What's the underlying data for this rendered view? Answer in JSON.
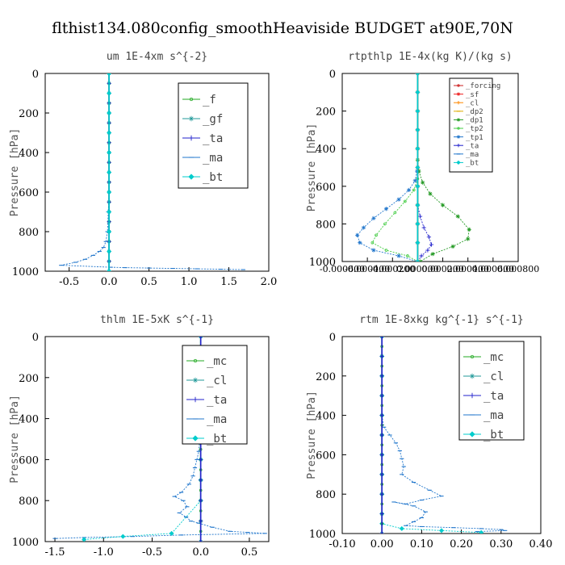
{
  "title": "flthist134.080config_smoothHeaviside  BUDGET at90E,70N",
  "chart_data": [
    {
      "type": "line",
      "title": "um  1E-4xm s^{-2}",
      "ylabel": "Pressure [hPa]",
      "xlabel": "",
      "xlim": [
        -0.8,
        2.0
      ],
      "ylim": [
        1000,
        0
      ],
      "xticks": [
        "-0.5",
        "0.0",
        "0.5",
        "1.0",
        "1.5",
        "2.0"
      ],
      "xtick_values": [
        -0.5,
        0.0,
        0.5,
        1.0,
        1.5,
        2.0
      ],
      "yticks": [
        "0",
        "200",
        "400",
        "600",
        "800",
        "1000"
      ],
      "ytick_values": [
        0,
        200,
        400,
        600,
        800,
        1000
      ],
      "legend_position": "top-right",
      "legend_font": 14,
      "series": [
        {
          "name": "_f",
          "color": "#22aa22",
          "marker": "circle",
          "x": [
            0,
            0,
            0,
            0,
            0,
            0,
            0,
            0,
            0,
            0,
            0,
            0,
            0,
            0,
            0,
            0,
            0,
            0,
            0,
            0,
            0
          ],
          "y": [
            0,
            50,
            100,
            150,
            200,
            250,
            300,
            350,
            400,
            450,
            500,
            550,
            600,
            650,
            700,
            750,
            800,
            850,
            900,
            950,
            1000
          ]
        },
        {
          "name": "_gf",
          "color": "#229999",
          "marker": "star",
          "x": [
            0,
            0,
            0,
            0,
            0,
            0,
            0,
            0,
            0,
            0,
            0,
            0,
            0,
            0,
            0,
            0,
            0,
            0,
            0,
            0,
            0
          ],
          "y": [
            0,
            50,
            100,
            150,
            200,
            250,
            300,
            350,
            400,
            450,
            500,
            550,
            600,
            650,
            700,
            750,
            800,
            850,
            900,
            950,
            1000
          ]
        },
        {
          "name": "_ta",
          "color": "#2222cc",
          "marker": "plus",
          "x": [
            0,
            0,
            0,
            0,
            0,
            0,
            0,
            0,
            0,
            0,
            0,
            0,
            0,
            0,
            0,
            0,
            0,
            0,
            0,
            0,
            0
          ],
          "y": [
            0,
            50,
            100,
            150,
            200,
            250,
            300,
            350,
            400,
            450,
            500,
            550,
            600,
            650,
            700,
            750,
            800,
            850,
            900,
            950,
            1000
          ]
        },
        {
          "name": "_ma",
          "color": "#2277cc",
          "marker": "dash",
          "x": [
            0,
            0,
            0,
            0,
            0,
            0,
            0,
            -0.01,
            -0.02,
            -0.04,
            -0.07,
            -0.12,
            -0.2,
            -0.3,
            -0.42,
            -0.6,
            0.02,
            0.2,
            0.5,
            0.8,
            1.1,
            1.4,
            1.68
          ],
          "y": [
            0,
            100,
            200,
            300,
            400,
            500,
            600,
            700,
            800,
            850,
            880,
            900,
            920,
            940,
            955,
            970,
            980,
            982,
            984,
            986,
            988,
            990,
            992
          ]
        },
        {
          "name": "_bt",
          "color": "#00cccc",
          "marker": "diamond",
          "x": [
            0,
            0,
            0,
            0,
            0,
            0,
            0,
            0,
            0,
            0,
            0
          ],
          "y": [
            0,
            100,
            200,
            300,
            400,
            500,
            600,
            700,
            800,
            900,
            1000
          ]
        }
      ]
    },
    {
      "type": "line",
      "title": "rtpthlp  1E-4x(kg K)/(kg s)",
      "ylabel": "Pressure [hPa]",
      "xlabel": "",
      "xlim": [
        -0.0006,
        0.0008
      ],
      "ylim": [
        1000,
        0
      ],
      "xticks": [
        "-0.000600",
        "-0.000400",
        "-0.000200",
        "0.000000",
        "0.000200",
        "0.000400",
        "0.000600",
        "0.000800"
      ],
      "xtick_values": [
        -0.0006,
        -0.0004,
        -0.0002,
        0.0,
        0.0002,
        0.0004,
        0.0006,
        0.0008
      ],
      "yticks": [
        "0",
        "200",
        "400",
        "600",
        "800",
        "1000"
      ],
      "ytick_values": [
        0,
        200,
        400,
        600,
        800,
        1000
      ],
      "legend_position": "top-right",
      "legend_font": 9,
      "series": [
        {
          "name": "_forcing",
          "color": "#cc2222",
          "marker": "circle",
          "x": [
            0,
            0,
            0,
            0,
            0,
            0,
            0,
            0,
            0,
            0,
            0
          ],
          "y": [
            0,
            100,
            200,
            300,
            400,
            500,
            600,
            700,
            800,
            900,
            1000
          ]
        },
        {
          "name": "_sf",
          "color": "#ee2222",
          "marker": "star",
          "x": [
            0,
            0,
            0,
            0,
            0,
            0,
            0,
            0,
            0,
            0,
            0
          ],
          "y": [
            0,
            100,
            200,
            300,
            400,
            500,
            600,
            700,
            800,
            900,
            1000
          ]
        },
        {
          "name": "_cl",
          "color": "#ff8800",
          "marker": "plus",
          "x": [
            0,
            0,
            0,
            0,
            0,
            0,
            0,
            0,
            0,
            0,
            0
          ],
          "y": [
            0,
            100,
            200,
            300,
            400,
            500,
            600,
            700,
            800,
            900,
            1000
          ]
        },
        {
          "name": "_dp2",
          "color": "#ddaa00",
          "marker": "dash",
          "x": [
            0,
            0,
            0,
            0,
            0,
            0,
            0,
            0,
            0,
            0,
            0
          ],
          "y": [
            0,
            100,
            200,
            300,
            400,
            500,
            600,
            700,
            800,
            900,
            1000
          ]
        },
        {
          "name": "_dp1",
          "color": "#229922",
          "marker": "star",
          "x": [
            0,
            0,
            1e-05,
            4e-05,
            0.0001,
            0.0002,
            0.00032,
            0.00041,
            0.0004,
            0.00028,
            0.00012,
            2e-05
          ],
          "y": [
            400,
            460,
            520,
            580,
            640,
            700,
            760,
            830,
            880,
            920,
            960,
            1000
          ]
        },
        {
          "name": "_tp2",
          "color": "#44cc44",
          "marker": "circle",
          "x": [
            0,
            -3e-05,
            -0.0001,
            -0.00018,
            -0.00026,
            -0.00033,
            -0.00036,
            -0.00025,
            -8e-05,
            0
          ],
          "y": [
            560,
            620,
            680,
            740,
            800,
            860,
            900,
            940,
            970,
            1000
          ]
        },
        {
          "name": "_tp1",
          "color": "#2277cc",
          "marker": "star",
          "x": [
            -5e-06,
            -2e-05,
            -7e-05,
            -0.00015,
            -0.00025,
            -0.00035,
            -0.00043,
            -0.00048,
            -0.00046,
            -0.00035,
            -0.00015,
            0
          ],
          "y": [
            520,
            570,
            620,
            670,
            720,
            770,
            820,
            860,
            900,
            940,
            970,
            1000
          ]
        },
        {
          "name": "_ta",
          "color": "#2222cc",
          "marker": "plus",
          "x": [
            0,
            2e-05,
            5e-05,
            9e-05,
            0.00011,
            8e-05,
            3e-05,
            0
          ],
          "y": [
            700,
            760,
            820,
            870,
            910,
            940,
            970,
            1000
          ]
        },
        {
          "name": "_ma",
          "color": "#2277cc",
          "marker": "dash",
          "x": [
            0,
            0,
            0,
            0,
            0,
            0,
            0,
            0,
            0,
            0,
            0
          ],
          "y": [
            0,
            100,
            200,
            300,
            400,
            500,
            600,
            700,
            800,
            900,
            1000
          ]
        },
        {
          "name": "_bt",
          "color": "#00cccc",
          "marker": "diamond",
          "x": [
            0,
            0,
            0,
            0,
            0,
            0,
            0,
            0,
            0,
            0,
            0
          ],
          "y": [
            0,
            100,
            200,
            300,
            400,
            500,
            600,
            700,
            800,
            900,
            1000
          ]
        }
      ]
    },
    {
      "type": "line",
      "title": "thlm  1E-5xK s^{-1}",
      "ylabel": "Pressure [hPa]",
      "xlabel": "",
      "xlim": [
        -1.6,
        0.7
      ],
      "ylim": [
        1000,
        0
      ],
      "xticks": [
        "-1.5",
        "-1.0",
        "-0.5",
        "0.0",
        "0.5"
      ],
      "xtick_values": [
        -1.5,
        -1.0,
        -0.5,
        0.0,
        0.5
      ],
      "yticks": [
        "0",
        "200",
        "400",
        "600",
        "800",
        "1000"
      ],
      "ytick_values": [
        0,
        200,
        400,
        600,
        800,
        1000
      ],
      "legend_position": "top-right",
      "legend_font": 14,
      "series": [
        {
          "name": "_mc",
          "color": "#22aa22",
          "marker": "circle",
          "x": [
            0,
            0,
            0,
            0,
            0,
            0,
            0,
            0,
            0,
            0,
            0,
            0,
            0,
            0,
            0,
            0,
            0,
            0,
            0,
            0,
            0
          ],
          "y": [
            0,
            50,
            100,
            150,
            200,
            250,
            300,
            350,
            400,
            450,
            500,
            550,
            600,
            650,
            700,
            750,
            800,
            850,
            900,
            950,
            1000
          ]
        },
        {
          "name": "_cl",
          "color": "#229999",
          "marker": "star",
          "x": [
            0,
            0,
            0,
            0,
            0,
            0,
            0,
            0,
            0,
            0,
            0
          ],
          "y": [
            0,
            100,
            200,
            300,
            400,
            500,
            600,
            700,
            800,
            900,
            1000
          ]
        },
        {
          "name": "_ta",
          "color": "#2222cc",
          "marker": "plus",
          "x": [
            0,
            0,
            0,
            0,
            0,
            0,
            0,
            0,
            0,
            0,
            0
          ],
          "y": [
            0,
            100,
            200,
            300,
            400,
            500,
            600,
            700,
            800,
            900,
            1000
          ]
        },
        {
          "name": "_ma",
          "color": "#2277cc",
          "marker": "dash",
          "x": [
            0,
            0,
            0,
            -0.01,
            -0.02,
            -0.04,
            -0.06,
            -0.08,
            -0.12,
            -0.2,
            -0.27,
            -0.18,
            -0.14,
            -0.22,
            -0.15,
            -0.1,
            -0.02,
            0.12,
            0.3,
            0.48,
            0.66,
            -0.2,
            -0.7,
            -1.2,
            -1.5
          ],
          "y": [
            0,
            200,
            400,
            500,
            560,
            600,
            640,
            680,
            720,
            760,
            780,
            800,
            830,
            860,
            880,
            900,
            910,
            930,
            950,
            955,
            960,
            968,
            975,
            980,
            985
          ]
        },
        {
          "name": "_bt",
          "color": "#00cccc",
          "marker": "diamond",
          "x": [
            0,
            0,
            0,
            0,
            0,
            0,
            0,
            0,
            0,
            -0.3,
            -0.8,
            -1.2
          ],
          "y": [
            0,
            100,
            200,
            300,
            400,
            500,
            600,
            700,
            800,
            960,
            975,
            990
          ]
        }
      ]
    },
    {
      "type": "line",
      "title": "rtm  1E-8xkg kg^{-1} s^{-1}",
      "ylabel": "Pressure [hPa]",
      "xlabel": "",
      "xlim": [
        -0.1,
        0.4
      ],
      "ylim": [
        1000,
        0
      ],
      "xticks": [
        "-0.10",
        "0.00",
        "0.10",
        "0.20",
        "0.30",
        "0.40"
      ],
      "xtick_values": [
        -0.1,
        0.0,
        0.1,
        0.2,
        0.3,
        0.4
      ],
      "yticks": [
        "0",
        "200",
        "400",
        "600",
        "800",
        "1000"
      ],
      "ytick_values": [
        0,
        200,
        400,
        600,
        800,
        1000
      ],
      "legend_position": "top-right",
      "legend_font": 14,
      "series": [
        {
          "name": "_mc",
          "color": "#22aa22",
          "marker": "circle",
          "x": [
            0,
            0,
            0,
            0,
            0,
            0,
            0,
            0,
            0,
            0,
            0,
            0,
            0,
            0,
            0,
            0,
            0,
            0,
            0,
            0,
            0
          ],
          "y": [
            0,
            50,
            100,
            150,
            200,
            250,
            300,
            350,
            400,
            450,
            500,
            550,
            600,
            650,
            700,
            750,
            800,
            850,
            900,
            950,
            1000
          ]
        },
        {
          "name": "_cl",
          "color": "#229999",
          "marker": "star",
          "x": [
            0,
            0,
            0,
            0,
            0,
            0,
            0,
            0,
            0,
            0,
            0
          ],
          "y": [
            0,
            100,
            200,
            300,
            400,
            500,
            600,
            700,
            800,
            900,
            1000
          ]
        },
        {
          "name": "_ta",
          "color": "#2222cc",
          "marker": "plus",
          "x": [
            0,
            0,
            0,
            0,
            0,
            0,
            0,
            0,
            0,
            0,
            0
          ],
          "y": [
            0,
            100,
            200,
            300,
            400,
            500,
            600,
            700,
            800,
            900,
            1000
          ]
        },
        {
          "name": "_ma",
          "color": "#2277cc",
          "marker": "dash",
          "x": [
            0,
            0,
            0.005,
            0.02,
            0.035,
            0.045,
            0.05,
            0.055,
            0.05,
            0.08,
            0.12,
            0.15,
            0.1,
            0.06,
            0.03,
            0.08,
            0.11,
            0.1,
            0.08,
            0.06,
            0.1,
            0.18,
            0.25,
            0.3,
            0.31,
            0.24
          ],
          "y": [
            0,
            400,
            460,
            500,
            540,
            580,
            620,
            660,
            700,
            740,
            780,
            810,
            830,
            850,
            840,
            860,
            890,
            920,
            940,
            960,
            965,
            970,
            975,
            980,
            985,
            990
          ]
        },
        {
          "name": "_bt",
          "color": "#00cccc",
          "marker": "diamond",
          "x": [
            0,
            0,
            0,
            0,
            0,
            0,
            0,
            0,
            0,
            0,
            0,
            0.05,
            0.15,
            0.25
          ],
          "y": [
            0,
            100,
            200,
            300,
            400,
            500,
            600,
            700,
            800,
            900,
            950,
            975,
            985,
            995
          ]
        }
      ]
    }
  ]
}
